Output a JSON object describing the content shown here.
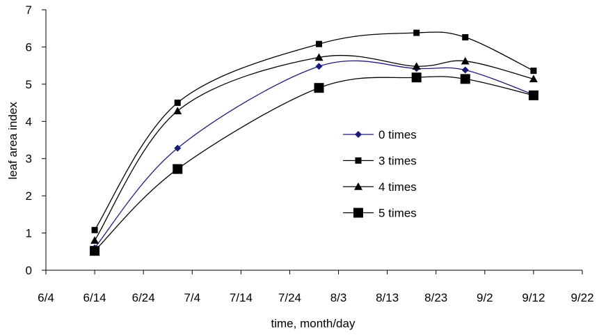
{
  "chart_data": {
    "type": "line",
    "title": "",
    "xlabel": "time, month/day",
    "ylabel": "leaf area index",
    "x_tick_labels": [
      "6/4",
      "6/14",
      "6/24",
      "7/4",
      "7/14",
      "7/24",
      "8/3",
      "8/13",
      "8/23",
      "9/2",
      "9/12",
      "9/22"
    ],
    "y_tick_labels": [
      "0",
      "1",
      "2",
      "3",
      "4",
      "5",
      "6",
      "7"
    ],
    "xlim": [
      "6/4",
      "9/22"
    ],
    "ylim": [
      0,
      7
    ],
    "grid": false,
    "legend_position": "center-right",
    "series": [
      {
        "name": "0 times",
        "marker": "diamond",
        "color": "#1a1a7a",
        "x": [
          "6/14",
          "7/1",
          "7/30",
          "8/19",
          "8/29",
          "9/12"
        ],
        "values": [
          0.6,
          3.28,
          5.48,
          5.42,
          5.38,
          4.72
        ]
      },
      {
        "name": "3 times",
        "marker": "square",
        "color": "#000000",
        "x": [
          "6/14",
          "7/1",
          "7/30",
          "8/19",
          "8/29",
          "9/12"
        ],
        "values": [
          1.08,
          4.5,
          6.08,
          6.38,
          6.26,
          5.36
        ]
      },
      {
        "name": "4 times",
        "marker": "triangle",
        "color": "#000000",
        "x": [
          "6/14",
          "7/1",
          "7/30",
          "8/19",
          "8/29",
          "9/12"
        ],
        "values": [
          0.8,
          4.28,
          5.72,
          5.48,
          5.62,
          5.14
        ]
      },
      {
        "name": "5 times",
        "marker": "square-large",
        "color": "#000000",
        "x": [
          "6/14",
          "7/1",
          "7/30",
          "8/19",
          "8/29",
          "9/12"
        ],
        "values": [
          0.52,
          2.72,
          4.9,
          5.18,
          5.14,
          4.7
        ]
      }
    ]
  }
}
